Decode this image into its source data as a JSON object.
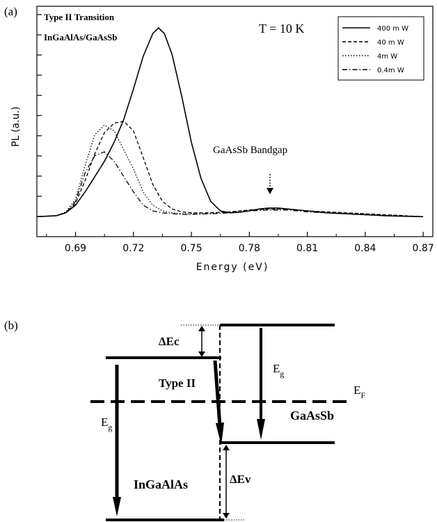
{
  "chart_data": [
    {
      "panel_label": "(a)",
      "type": "line",
      "xlabel": "Energy (eV)",
      "ylabel": "PL (a.u.)",
      "xlim": [
        0.67,
        0.875
      ],
      "xticks": [
        0.69,
        0.72,
        0.75,
        0.78,
        0.81,
        0.84,
        0.87
      ],
      "tick_labels": [
        "0.69",
        "0.72",
        "0.75",
        "0.78",
        "0.81",
        "0.84",
        "0.87"
      ],
      "ylim": [
        0,
        1
      ],
      "grid": false,
      "legend_position": "top-right",
      "annotations": {
        "title_line1": "Type II Transition",
        "title_line2": "InGaAlAs/GaAsSb",
        "temperature": "T = 10 K",
        "bandgap_label": "GaAsSb Bandgap"
      },
      "bandgap_marker_x": 0.793,
      "series": [
        {
          "name": "400 m W",
          "line_style": "solid",
          "x": [
            0.67,
            0.68,
            0.685,
            0.69,
            0.695,
            0.7,
            0.705,
            0.71,
            0.715,
            0.72,
            0.725,
            0.73,
            0.733,
            0.736,
            0.74,
            0.745,
            0.75,
            0.755,
            0.76,
            0.765,
            0.77,
            0.775,
            0.78,
            0.785,
            0.79,
            0.795,
            0.8,
            0.81,
            0.82,
            0.83,
            0.84,
            0.85,
            0.86,
            0.87
          ],
          "y": [
            0.01,
            0.015,
            0.03,
            0.07,
            0.14,
            0.22,
            0.3,
            0.4,
            0.52,
            0.68,
            0.85,
            0.97,
            1.0,
            0.97,
            0.86,
            0.64,
            0.4,
            0.21,
            0.09,
            0.04,
            0.03,
            0.033,
            0.04,
            0.05,
            0.055,
            0.055,
            0.05,
            0.04,
            0.03,
            0.025,
            0.02,
            0.015,
            0.012,
            0.01
          ]
        },
        {
          "name": "40 m W",
          "line_style": "dashed",
          "x": [
            0.67,
            0.68,
            0.685,
            0.69,
            0.695,
            0.7,
            0.705,
            0.71,
            0.715,
            0.72,
            0.725,
            0.73,
            0.735,
            0.74,
            0.745,
            0.75,
            0.76,
            0.77,
            0.78,
            0.79,
            0.8,
            0.81,
            0.82,
            0.83,
            0.84,
            0.85,
            0.86,
            0.87
          ],
          "y": [
            0.01,
            0.015,
            0.03,
            0.08,
            0.2,
            0.34,
            0.45,
            0.5,
            0.51,
            0.46,
            0.32,
            0.18,
            0.09,
            0.05,
            0.035,
            0.03,
            0.03,
            0.035,
            0.045,
            0.05,
            0.05,
            0.04,
            0.035,
            0.03,
            0.025,
            0.02,
            0.015,
            0.01
          ]
        },
        {
          "name": "4m W",
          "line_style": "dotted",
          "x": [
            0.67,
            0.68,
            0.685,
            0.69,
            0.695,
            0.7,
            0.705,
            0.71,
            0.715,
            0.72,
            0.725,
            0.73,
            0.735,
            0.74,
            0.745,
            0.75,
            0.76,
            0.77,
            0.78,
            0.79,
            0.8,
            0.81,
            0.82,
            0.83,
            0.84,
            0.85,
            0.86,
            0.87
          ],
          "y": [
            0.01,
            0.015,
            0.035,
            0.1,
            0.28,
            0.44,
            0.49,
            0.46,
            0.36,
            0.26,
            0.14,
            0.07,
            0.04,
            0.03,
            0.025,
            0.025,
            0.028,
            0.035,
            0.045,
            0.05,
            0.05,
            0.04,
            0.035,
            0.03,
            0.025,
            0.02,
            0.015,
            0.01
          ]
        },
        {
          "name": "0.4m W",
          "line_style": "dashdot",
          "x": [
            0.67,
            0.68,
            0.685,
            0.69,
            0.695,
            0.7,
            0.705,
            0.71,
            0.715,
            0.72,
            0.725,
            0.73,
            0.735,
            0.74,
            0.745,
            0.75,
            0.76,
            0.77,
            0.78,
            0.79,
            0.8,
            0.81,
            0.82,
            0.83,
            0.84,
            0.85,
            0.86,
            0.87
          ],
          "y": [
            0.01,
            0.015,
            0.03,
            0.09,
            0.24,
            0.33,
            0.35,
            0.3,
            0.22,
            0.14,
            0.07,
            0.04,
            0.03,
            0.025,
            0.022,
            0.022,
            0.025,
            0.03,
            0.04,
            0.045,
            0.045,
            0.035,
            0.03,
            0.025,
            0.02,
            0.015,
            0.012,
            0.01
          ]
        }
      ]
    }
  ],
  "panel_b": {
    "panel_label": "(b)",
    "delta_ec": "ΔEc",
    "delta_ev": "ΔEv",
    "type_label": "Type II",
    "eg_label": "E",
    "eg_sub": "g",
    "ef_label": "E",
    "ef_sub": "F",
    "left_material": "InGaAlAs",
    "right_material": "GaAsSb"
  }
}
